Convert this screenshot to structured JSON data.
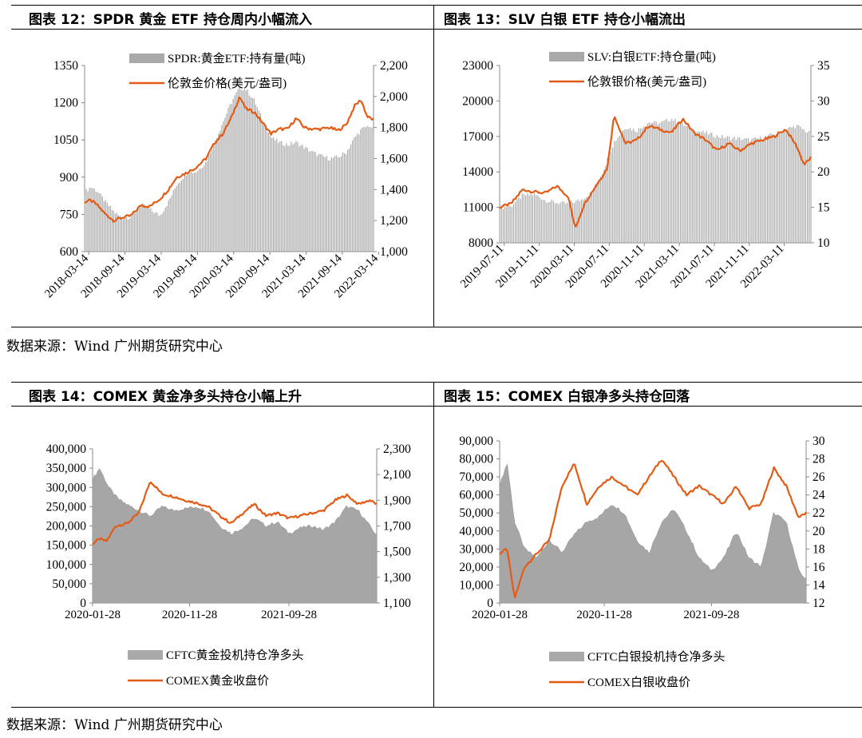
{
  "titles": {
    "f12": "图表  12：SPDR 黄金 ETF 持仓周内小幅流入",
    "f13": "图表  13：SLV 白银 ETF 持仓小幅流出",
    "f14": "图表  14：COMEX 黄金净多头持仓小幅上升",
    "f15": "图表  15：COMEX 白银净多头持仓回落"
  },
  "source_top": "数据来源：Wind  广州期货研究中心",
  "source_bottom": "数据来源：Wind  广州期货研究中心",
  "colors": {
    "bar": "#a9a9a9",
    "area": "#a6a6a6",
    "line": "#e35b14"
  },
  "chart_data": [
    {
      "id": "f12",
      "type": "bar+line",
      "x_ticks": [
        "2018-03-14",
        "2018-09-14",
        "2019-03-14",
        "2019-09-14",
        "2020-03-14",
        "2020-09-14",
        "2021-03-14",
        "2021-09-14",
        "2022-03-14"
      ],
      "y_left": {
        "ticks": [
          "1350",
          "1200",
          "1050",
          "900",
          "750",
          "600"
        ],
        "range": [
          600,
          1350
        ]
      },
      "y_right": {
        "ticks": [
          "2,200",
          "2,000",
          "1,800",
          "1,600",
          "1,400",
          "1,200",
          "1,000"
        ],
        "range": [
          1000,
          2200
        ]
      },
      "legend": [
        {
          "name": "SPDR:黄金ETF:持有量(吨)",
          "kind": "bar"
        },
        {
          "name": "伦敦金价格(美元/盎司)",
          "kind": "line"
        }
      ],
      "bar_series": {
        "name": "SPDR:黄金ETF:持有量(吨)",
        "axis": "left",
        "points": [
          [
            0,
            840
          ],
          [
            0.03,
            860
          ],
          [
            0.06,
            845
          ],
          [
            0.1,
            800
          ],
          [
            0.14,
            760
          ],
          [
            0.18,
            735
          ],
          [
            0.22,
            740
          ],
          [
            0.27,
            790
          ],
          [
            0.31,
            770
          ],
          [
            0.36,
            745
          ],
          [
            0.4,
            800
          ],
          [
            0.44,
            870
          ],
          [
            0.49,
            920
          ],
          [
            0.53,
            920
          ],
          [
            0.58,
            960
          ],
          [
            0.62,
            1040
          ],
          [
            0.66,
            1120
          ],
          [
            0.7,
            1200
          ],
          [
            0.74,
            1260
          ],
          [
            0.77,
            1255
          ],
          [
            0.81,
            1210
          ],
          [
            0.85,
            1130
          ],
          [
            0.89,
            1060
          ],
          [
            0.93,
            1040
          ],
          [
            0.97,
            1030
          ],
          [
            1.01,
            1040
          ],
          [
            1.05,
            1020
          ],
          [
            1.09,
            1000
          ],
          [
            1.13,
            985
          ],
          [
            1.17,
            975
          ],
          [
            1.21,
            980
          ],
          [
            1.25,
            1000
          ],
          [
            1.29,
            1060
          ],
          [
            1.32,
            1090
          ],
          [
            1.36,
            1110
          ],
          [
            1.38,
            1080
          ]
        ]
      },
      "line_series": {
        "name": "伦敦金价格(美元/盎司)",
        "axis": "right",
        "points": [
          [
            0,
            1320
          ],
          [
            0.03,
            1330
          ],
          [
            0.06,
            1300
          ],
          [
            0.1,
            1240
          ],
          [
            0.14,
            1200
          ],
          [
            0.18,
            1220
          ],
          [
            0.22,
            1230
          ],
          [
            0.27,
            1300
          ],
          [
            0.31,
            1290
          ],
          [
            0.36,
            1340
          ],
          [
            0.4,
            1400
          ],
          [
            0.44,
            1480
          ],
          [
            0.49,
            1510
          ],
          [
            0.53,
            1540
          ],
          [
            0.58,
            1600
          ],
          [
            0.62,
            1700
          ],
          [
            0.66,
            1760
          ],
          [
            0.7,
            1860
          ],
          [
            0.74,
            2000
          ],
          [
            0.77,
            1920
          ],
          [
            0.81,
            1900
          ],
          [
            0.85,
            1830
          ],
          [
            0.89,
            1760
          ],
          [
            0.93,
            1790
          ],
          [
            0.97,
            1790
          ],
          [
            1.01,
            1860
          ],
          [
            1.05,
            1800
          ],
          [
            1.09,
            1790
          ],
          [
            1.13,
            1790
          ],
          [
            1.17,
            1800
          ],
          [
            1.21,
            1780
          ],
          [
            1.25,
            1820
          ],
          [
            1.29,
            1940
          ],
          [
            1.32,
            1980
          ],
          [
            1.35,
            1870
          ],
          [
            1.38,
            1850
          ]
        ]
      }
    },
    {
      "id": "f13",
      "type": "bar+line",
      "x_ticks": [
        "2019-07-11",
        "2019-11-11",
        "2020-03-11",
        "2020-07-11",
        "2020-11-11",
        "2021-03-11",
        "2021-07-11",
        "2021-11-11",
        "2022-03-11"
      ],
      "y_left": {
        "ticks": [
          "23000",
          "20000",
          "17000",
          "14000",
          "11000",
          "8000"
        ],
        "range": [
          8000,
          23000
        ]
      },
      "y_right": {
        "ticks": [
          "35",
          "30",
          "25",
          "20",
          "15",
          "10"
        ],
        "range": [
          10,
          35
        ]
      },
      "legend": [
        {
          "name": "SLV:白银ETF:持仓量(吨)",
          "kind": "bar"
        },
        {
          "name": "伦敦银价格(美元/盎司)",
          "kind": "line"
        }
      ],
      "bar_series": {
        "name": "SLV:白银ETF:持仓量(吨)",
        "axis": "left",
        "points": [
          [
            0,
            11000
          ],
          [
            0.05,
            11100
          ],
          [
            0.1,
            12000
          ],
          [
            0.15,
            12100
          ],
          [
            0.2,
            11600
          ],
          [
            0.25,
            11400
          ],
          [
            0.3,
            11300
          ],
          [
            0.35,
            11600
          ],
          [
            0.4,
            12200
          ],
          [
            0.45,
            14000
          ],
          [
            0.5,
            16500
          ],
          [
            0.55,
            17800
          ],
          [
            0.6,
            17500
          ],
          [
            0.65,
            18200
          ],
          [
            0.7,
            18100
          ],
          [
            0.75,
            18500
          ],
          [
            0.8,
            18000
          ],
          [
            0.85,
            17500
          ],
          [
            0.9,
            17300
          ],
          [
            0.95,
            17000
          ],
          [
            1.0,
            16900
          ],
          [
            1.05,
            16800
          ],
          [
            1.1,
            16700
          ],
          [
            1.15,
            16900
          ],
          [
            1.2,
            17200
          ],
          [
            1.25,
            17600
          ],
          [
            1.3,
            17900
          ],
          [
            1.35,
            17300
          ]
        ]
      },
      "line_series": {
        "name": "伦敦银价格(美元/盎司)",
        "axis": "right",
        "points": [
          [
            0,
            15
          ],
          [
            0.05,
            15.5
          ],
          [
            0.1,
            17.5
          ],
          [
            0.15,
            17.2
          ],
          [
            0.2,
            17
          ],
          [
            0.25,
            18
          ],
          [
            0.3,
            16.5
          ],
          [
            0.33,
            12
          ],
          [
            0.37,
            15.5
          ],
          [
            0.42,
            18
          ],
          [
            0.47,
            20.5
          ],
          [
            0.5,
            28
          ],
          [
            0.55,
            24
          ],
          [
            0.6,
            24.5
          ],
          [
            0.65,
            26.5
          ],
          [
            0.7,
            26
          ],
          [
            0.75,
            25.5
          ],
          [
            0.8,
            27.5
          ],
          [
            0.85,
            25.5
          ],
          [
            0.9,
            24.5
          ],
          [
            0.95,
            23
          ],
          [
            1.0,
            24
          ],
          [
            1.05,
            23
          ],
          [
            1.1,
            24
          ],
          [
            1.15,
            24.5
          ],
          [
            1.2,
            25
          ],
          [
            1.25,
            26
          ],
          [
            1.3,
            23.5
          ],
          [
            1.33,
            21
          ],
          [
            1.36,
            22
          ]
        ]
      }
    },
    {
      "id": "f14",
      "type": "area+line",
      "x_ticks": [
        "2020-01-28",
        "2020-11-28",
        "2021-09-28"
      ],
      "y_left": {
        "ticks": [
          "400,000",
          "350,000",
          "300,000",
          "250,000",
          "200,000",
          "150,000",
          "100,000",
          "50,000",
          "0"
        ],
        "range": [
          0,
          400000
        ]
      },
      "y_right": {
        "ticks": [
          "2,300",
          "2,100",
          "1,900",
          "1,700",
          "1,500",
          "1,300",
          "1,100"
        ],
        "range": [
          1100,
          2300
        ]
      },
      "legend": [
        {
          "name": "CFTC黄金投机持仓净多头",
          "kind": "area"
        },
        {
          "name": "COMEX黄金收盘价",
          "kind": "line"
        }
      ],
      "area_series": {
        "name": "CFTC黄金投机持仓净多头",
        "axis": "left",
        "points": [
          [
            0,
            320000
          ],
          [
            0.03,
            350000
          ],
          [
            0.07,
            300000
          ],
          [
            0.11,
            270000
          ],
          [
            0.15,
            255000
          ],
          [
            0.2,
            240000
          ],
          [
            0.25,
            225000
          ],
          [
            0.3,
            250000
          ],
          [
            0.35,
            240000
          ],
          [
            0.4,
            245000
          ],
          [
            0.45,
            250000
          ],
          [
            0.5,
            240000
          ],
          [
            0.55,
            200000
          ],
          [
            0.6,
            180000
          ],
          [
            0.65,
            195000
          ],
          [
            0.7,
            220000
          ],
          [
            0.75,
            200000
          ],
          [
            0.8,
            210000
          ],
          [
            0.85,
            180000
          ],
          [
            0.9,
            195000
          ],
          [
            0.95,
            200000
          ],
          [
            1.0,
            190000
          ],
          [
            1.05,
            210000
          ],
          [
            1.1,
            250000
          ],
          [
            1.15,
            240000
          ],
          [
            1.2,
            200000
          ],
          [
            1.23,
            175000
          ]
        ]
      },
      "line_series": {
        "name": "COMEX黄金收盘价",
        "axis": "right",
        "points": [
          [
            0,
            1560
          ],
          [
            0.03,
            1600
          ],
          [
            0.06,
            1580
          ],
          [
            0.1,
            1700
          ],
          [
            0.15,
            1720
          ],
          [
            0.2,
            1800
          ],
          [
            0.25,
            2050
          ],
          [
            0.3,
            1950
          ],
          [
            0.35,
            1930
          ],
          [
            0.4,
            1900
          ],
          [
            0.45,
            1880
          ],
          [
            0.5,
            1850
          ],
          [
            0.55,
            1780
          ],
          [
            0.6,
            1720
          ],
          [
            0.65,
            1800
          ],
          [
            0.7,
            1870
          ],
          [
            0.75,
            1780
          ],
          [
            0.8,
            1800
          ],
          [
            0.85,
            1760
          ],
          [
            0.9,
            1780
          ],
          [
            0.95,
            1800
          ],
          [
            1.0,
            1820
          ],
          [
            1.05,
            1900
          ],
          [
            1.1,
            1940
          ],
          [
            1.15,
            1870
          ],
          [
            1.2,
            1900
          ],
          [
            1.23,
            1870
          ]
        ]
      }
    },
    {
      "id": "f15",
      "type": "area+line",
      "x_ticks": [
        "2020-01-28",
        "2020-11-28",
        "2021-09-28"
      ],
      "y_left": {
        "ticks": [
          "90,000",
          "80,000",
          "70,000",
          "60,000",
          "50,000",
          "40,000",
          "30,000",
          "20,000",
          "10,000",
          "0"
        ],
        "range": [
          0,
          90000
        ]
      },
      "y_right": {
        "ticks": [
          "30",
          "28",
          "26",
          "24",
          "22",
          "20",
          "18",
          "16",
          "14",
          "12"
        ],
        "range": [
          12,
          30
        ]
      },
      "legend": [
        {
          "name": "CFTC白银投机持仓净多头",
          "kind": "area"
        },
        {
          "name": "COMEX白银收盘价",
          "kind": "line"
        }
      ],
      "area_series": {
        "name": "CFTC白银投机持仓净多头",
        "axis": "left",
        "points": [
          [
            0,
            65000
          ],
          [
            0.03,
            78000
          ],
          [
            0.06,
            45000
          ],
          [
            0.1,
            30000
          ],
          [
            0.15,
            25000
          ],
          [
            0.2,
            35000
          ],
          [
            0.25,
            28000
          ],
          [
            0.3,
            38000
          ],
          [
            0.35,
            45000
          ],
          [
            0.4,
            48000
          ],
          [
            0.45,
            55000
          ],
          [
            0.5,
            50000
          ],
          [
            0.55,
            35000
          ],
          [
            0.6,
            28000
          ],
          [
            0.65,
            45000
          ],
          [
            0.7,
            52000
          ],
          [
            0.75,
            40000
          ],
          [
            0.8,
            25000
          ],
          [
            0.85,
            18000
          ],
          [
            0.9,
            25000
          ],
          [
            0.95,
            40000
          ],
          [
            1.0,
            25000
          ],
          [
            1.05,
            20000
          ],
          [
            1.1,
            50000
          ],
          [
            1.15,
            45000
          ],
          [
            1.2,
            18000
          ],
          [
            1.23,
            13000
          ]
        ]
      },
      "line_series": {
        "name": "COMEX白银收盘价",
        "axis": "right",
        "points": [
          [
            0,
            17.5
          ],
          [
            0.03,
            18
          ],
          [
            0.06,
            12.5
          ],
          [
            0.1,
            16
          ],
          [
            0.15,
            17.5
          ],
          [
            0.2,
            19
          ],
          [
            0.25,
            25
          ],
          [
            0.3,
            27.5
          ],
          [
            0.35,
            23
          ],
          [
            0.4,
            25
          ],
          [
            0.45,
            26
          ],
          [
            0.5,
            25
          ],
          [
            0.55,
            24
          ],
          [
            0.6,
            26
          ],
          [
            0.65,
            28
          ],
          [
            0.7,
            26
          ],
          [
            0.75,
            24
          ],
          [
            0.8,
            25
          ],
          [
            0.85,
            24
          ],
          [
            0.9,
            23
          ],
          [
            0.95,
            25
          ],
          [
            1.0,
            22.5
          ],
          [
            1.05,
            23
          ],
          [
            1.1,
            27
          ],
          [
            1.15,
            25
          ],
          [
            1.2,
            21.5
          ],
          [
            1.23,
            22
          ]
        ]
      }
    }
  ]
}
